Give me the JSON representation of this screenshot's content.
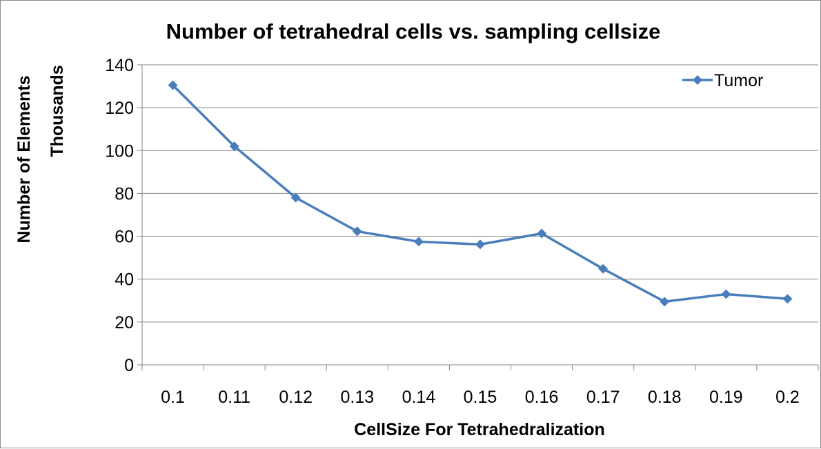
{
  "chart_data": {
    "type": "line",
    "title": "Number of tetrahedral cells vs. sampling cellsize",
    "xlabel": "CellSize For Tetrahedralization",
    "ylabel": "Number of Elements",
    "ylabel_units": "Thousands",
    "categories": [
      "0.1",
      "0.11",
      "0.12",
      "0.13",
      "0.14",
      "0.15",
      "0.16",
      "0.17",
      "0.18",
      "0.19",
      "0.2"
    ],
    "series": [
      {
        "name": "Tumor",
        "values": [
          130.5,
          102,
          78,
          62.3,
          57.5,
          56.2,
          61.3,
          44.8,
          29.5,
          33,
          30.8
        ]
      }
    ],
    "ylim": [
      0,
      140
    ],
    "yticks": [
      "0",
      "20",
      "40",
      "60",
      "80",
      "100",
      "120",
      "140"
    ],
    "grid": true,
    "legend_position": "top-right",
    "series_color": "#4a7ebb"
  }
}
